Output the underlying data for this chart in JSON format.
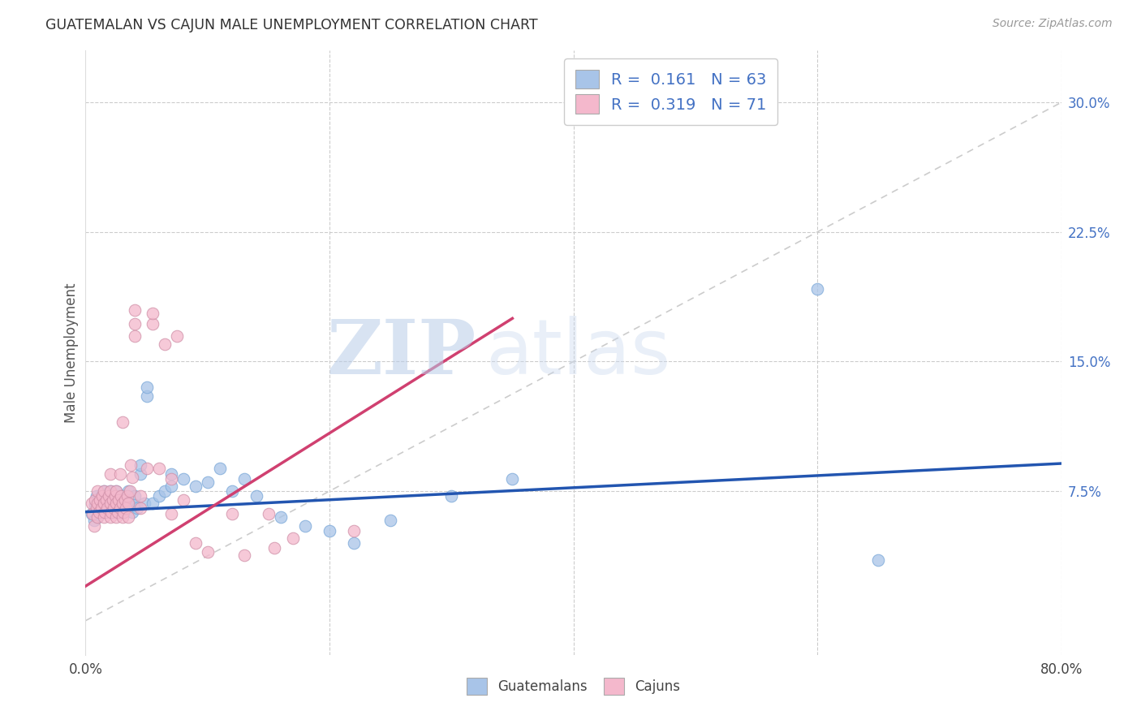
{
  "title": "GUATEMALAN VS CAJUN MALE UNEMPLOYMENT CORRELATION CHART",
  "source": "Source: ZipAtlas.com",
  "ylabel": "Male Unemployment",
  "yticks": [
    "7.5%",
    "15.0%",
    "22.5%",
    "30.0%"
  ],
  "ytick_vals": [
    0.075,
    0.15,
    0.225,
    0.3
  ],
  "xrange": [
    0.0,
    0.8
  ],
  "yrange": [
    -0.02,
    0.33
  ],
  "guatemalan_color": "#a8c4e8",
  "cajun_color": "#f4b8cc",
  "guatemalan_line_color": "#2255b0",
  "cajun_line_color": "#d04070",
  "diagonal_color": "#cccccc",
  "watermark_zip": "ZIP",
  "watermark_atlas": "atlas",
  "guat_line_x0": 0.0,
  "guat_line_x1": 0.8,
  "guat_line_y0": 0.063,
  "guat_line_y1": 0.091,
  "cajun_line_x0": 0.0,
  "cajun_line_x1": 0.35,
  "cajun_line_y0": 0.02,
  "cajun_line_y1": 0.175,
  "guatemalan_scatter": [
    [
      0.005,
      0.062
    ],
    [
      0.007,
      0.058
    ],
    [
      0.008,
      0.067
    ],
    [
      0.009,
      0.072
    ],
    [
      0.01,
      0.06
    ],
    [
      0.01,
      0.065
    ],
    [
      0.01,
      0.07
    ],
    [
      0.012,
      0.068
    ],
    [
      0.012,
      0.063
    ],
    [
      0.013,
      0.072
    ],
    [
      0.015,
      0.065
    ],
    [
      0.015,
      0.07
    ],
    [
      0.015,
      0.075
    ],
    [
      0.016,
      0.068
    ],
    [
      0.017,
      0.063
    ],
    [
      0.018,
      0.072
    ],
    [
      0.019,
      0.067
    ],
    [
      0.02,
      0.065
    ],
    [
      0.02,
      0.07
    ],
    [
      0.02,
      0.075
    ],
    [
      0.022,
      0.068
    ],
    [
      0.022,
      0.063
    ],
    [
      0.023,
      0.072
    ],
    [
      0.024,
      0.067
    ],
    [
      0.025,
      0.07
    ],
    [
      0.025,
      0.075
    ],
    [
      0.027,
      0.068
    ],
    [
      0.028,
      0.063
    ],
    [
      0.03,
      0.072
    ],
    [
      0.03,
      0.067
    ],
    [
      0.032,
      0.065
    ],
    [
      0.033,
      0.07
    ],
    [
      0.035,
      0.075
    ],
    [
      0.035,
      0.068
    ],
    [
      0.038,
      0.063
    ],
    [
      0.04,
      0.072
    ],
    [
      0.04,
      0.067
    ],
    [
      0.042,
      0.065
    ],
    [
      0.045,
      0.085
    ],
    [
      0.045,
      0.09
    ],
    [
      0.048,
      0.068
    ],
    [
      0.05,
      0.13
    ],
    [
      0.05,
      0.135
    ],
    [
      0.055,
      0.068
    ],
    [
      0.06,
      0.072
    ],
    [
      0.065,
      0.075
    ],
    [
      0.07,
      0.085
    ],
    [
      0.07,
      0.078
    ],
    [
      0.08,
      0.082
    ],
    [
      0.09,
      0.078
    ],
    [
      0.1,
      0.08
    ],
    [
      0.11,
      0.088
    ],
    [
      0.12,
      0.075
    ],
    [
      0.13,
      0.082
    ],
    [
      0.14,
      0.072
    ],
    [
      0.16,
      0.06
    ],
    [
      0.18,
      0.055
    ],
    [
      0.2,
      0.052
    ],
    [
      0.22,
      0.045
    ],
    [
      0.25,
      0.058
    ],
    [
      0.3,
      0.072
    ],
    [
      0.35,
      0.082
    ],
    [
      0.6,
      0.192
    ],
    [
      0.65,
      0.035
    ]
  ],
  "cajun_scatter": [
    [
      0.005,
      0.068
    ],
    [
      0.006,
      0.062
    ],
    [
      0.007,
      0.055
    ],
    [
      0.008,
      0.07
    ],
    [
      0.009,
      0.065
    ],
    [
      0.01,
      0.06
    ],
    [
      0.01,
      0.068
    ],
    [
      0.01,
      0.075
    ],
    [
      0.011,
      0.063
    ],
    [
      0.012,
      0.07
    ],
    [
      0.013,
      0.065
    ],
    [
      0.014,
      0.072
    ],
    [
      0.015,
      0.06
    ],
    [
      0.015,
      0.068
    ],
    [
      0.015,
      0.075
    ],
    [
      0.016,
      0.063
    ],
    [
      0.017,
      0.07
    ],
    [
      0.018,
      0.065
    ],
    [
      0.019,
      0.072
    ],
    [
      0.02,
      0.06
    ],
    [
      0.02,
      0.068
    ],
    [
      0.02,
      0.075
    ],
    [
      0.02,
      0.085
    ],
    [
      0.021,
      0.063
    ],
    [
      0.022,
      0.07
    ],
    [
      0.023,
      0.065
    ],
    [
      0.024,
      0.072
    ],
    [
      0.025,
      0.06
    ],
    [
      0.025,
      0.068
    ],
    [
      0.025,
      0.075
    ],
    [
      0.026,
      0.063
    ],
    [
      0.027,
      0.07
    ],
    [
      0.028,
      0.065
    ],
    [
      0.028,
      0.085
    ],
    [
      0.029,
      0.072
    ],
    [
      0.03,
      0.06
    ],
    [
      0.03,
      0.068
    ],
    [
      0.03,
      0.115
    ],
    [
      0.031,
      0.063
    ],
    [
      0.032,
      0.07
    ],
    [
      0.033,
      0.065
    ],
    [
      0.034,
      0.072
    ],
    [
      0.035,
      0.06
    ],
    [
      0.035,
      0.068
    ],
    [
      0.036,
      0.075
    ],
    [
      0.037,
      0.09
    ],
    [
      0.038,
      0.083
    ],
    [
      0.04,
      0.165
    ],
    [
      0.04,
      0.172
    ],
    [
      0.04,
      0.18
    ],
    [
      0.045,
      0.065
    ],
    [
      0.045,
      0.072
    ],
    [
      0.05,
      0.088
    ],
    [
      0.055,
      0.172
    ],
    [
      0.055,
      0.178
    ],
    [
      0.06,
      0.088
    ],
    [
      0.065,
      0.16
    ],
    [
      0.07,
      0.082
    ],
    [
      0.07,
      0.062
    ],
    [
      0.075,
      0.165
    ],
    [
      0.08,
      0.07
    ],
    [
      0.09,
      0.045
    ],
    [
      0.1,
      0.04
    ],
    [
      0.12,
      0.062
    ],
    [
      0.13,
      0.038
    ],
    [
      0.15,
      0.062
    ],
    [
      0.155,
      0.042
    ],
    [
      0.17,
      0.048
    ],
    [
      0.22,
      0.052
    ]
  ]
}
